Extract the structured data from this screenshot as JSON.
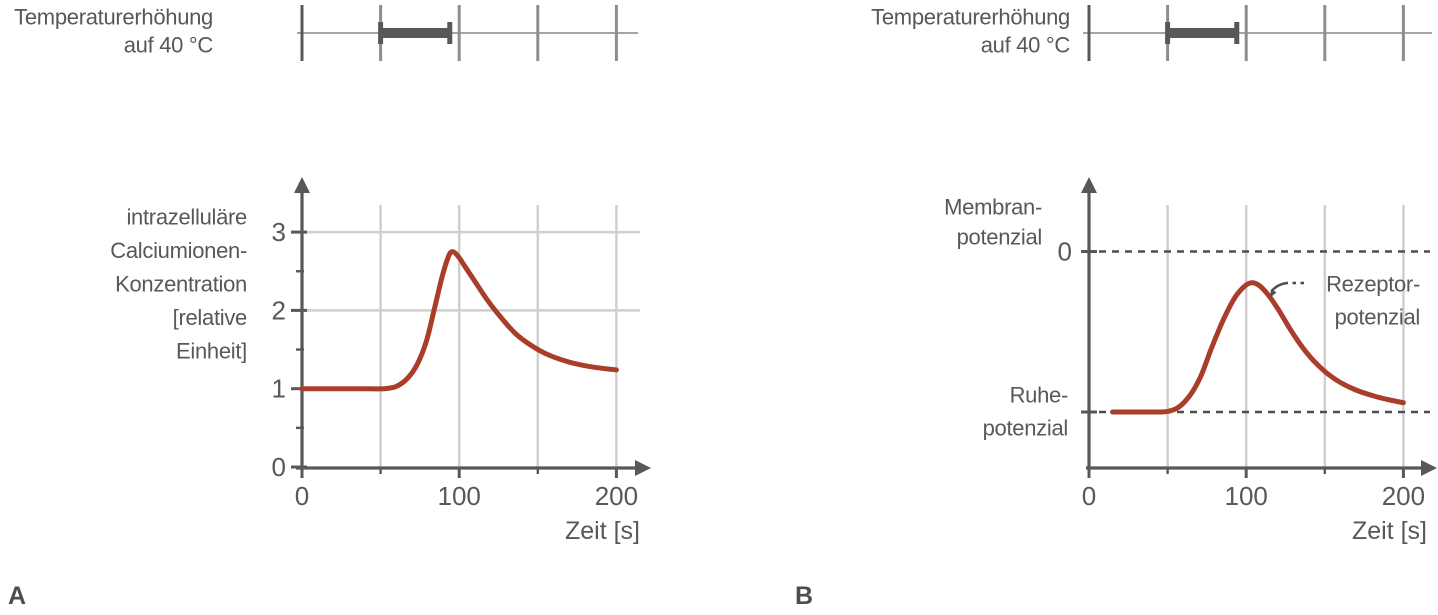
{
  "colors": {
    "curve": "#a93d29",
    "axis": "#58585a",
    "grid": "#cfcfcf",
    "text": "#58585a",
    "timeline_line": "#a4a4a6",
    "timeline_tick": "#8e8e90",
    "timeline_tick_first": "#58585a",
    "stimulus_bar": "#58585a",
    "dashed_line": "#4e4e50",
    "background": "#ffffff"
  },
  "panels": [
    {
      "letter": "A",
      "stimulus": {
        "label_line1": "Temperaturerhöhung",
        "label_line2": "auf 40 °C",
        "ticks_s": [
          0,
          50,
          100,
          150,
          200
        ],
        "bar_interval_s": [
          50,
          94
        ]
      }
    },
    {
      "letter": "B",
      "stimulus": {
        "label_line1": "Temperaturerhöhung",
        "label_line2": "auf 40 °C",
        "ticks_s": [
          0,
          50,
          100,
          150,
          200
        ],
        "bar_interval_s": [
          50,
          94
        ]
      }
    }
  ],
  "chart_data": [
    {
      "type": "line",
      "panel": "A",
      "title": "",
      "ylabel_lines": [
        "intrazelluläre",
        "Calciumionen-",
        "Konzentration",
        "[relative",
        "Einheit]"
      ],
      "xlabel": "Zeit [s]",
      "x_ticks": [
        0,
        100,
        200
      ],
      "x_minor_ticks": [
        50,
        150
      ],
      "x_gridlines": [
        50,
        100,
        150,
        200
      ],
      "y_ticks": [
        0,
        1,
        2,
        3
      ],
      "y_minor_ticks": [
        0.5,
        1.5,
        2.5
      ],
      "y_gridlines": [
        2,
        3
      ],
      "xlim": [
        0,
        218
      ],
      "ylim": [
        0,
        3.7
      ],
      "grid": true,
      "series": [
        {
          "name": "intrazelluläre Calciumionen-Konzentration [relative Einheit]",
          "color": "#a93d29",
          "points": [
            [
              0,
              1.0
            ],
            [
              40,
              1.0
            ],
            [
              52,
              1.0
            ],
            [
              60,
              1.03
            ],
            [
              67,
              1.13
            ],
            [
              73,
              1.3
            ],
            [
              79,
              1.6
            ],
            [
              84,
              2.0
            ],
            [
              89,
              2.42
            ],
            [
              93,
              2.68
            ],
            [
              95.5,
              2.75
            ],
            [
              99,
              2.7
            ],
            [
              104,
              2.55
            ],
            [
              110,
              2.37
            ],
            [
              118,
              2.13
            ],
            [
              127,
              1.9
            ],
            [
              136,
              1.7
            ],
            [
              146,
              1.55
            ],
            [
              157,
              1.43
            ],
            [
              170,
              1.34
            ],
            [
              184,
              1.28
            ],
            [
              200,
              1.24
            ]
          ]
        }
      ]
    },
    {
      "type": "line",
      "panel": "B",
      "title": "",
      "ylabel_lines": [
        "Membran-",
        "potenzial"
      ],
      "xlabel": "Zeit [s]",
      "x_ticks": [
        0,
        100,
        200
      ],
      "x_minor_ticks": [
        50,
        150
      ],
      "x_gridlines": [
        50,
        100,
        150,
        200
      ],
      "y_unit": "0 = Ruhepotenzial, 1 = 0-mV-Linie des Membranpotenzials",
      "xlim": [
        0,
        218
      ],
      "grid": true,
      "reference_lines": [
        {
          "label": "0",
          "y": 1
        },
        {
          "label_lines": [
            "Ruhe-",
            "potenzial"
          ],
          "y": 0
        }
      ],
      "annotation": {
        "label_lines": [
          "Rezeptor-",
          "potenzial"
        ],
        "points_to_t": 115.2,
        "points_to_y": 0.72
      },
      "series": [
        {
          "name": "Membranpotenzial (Rezeptorpotenzial)",
          "color": "#a93d29",
          "points": [
            [
              15,
              0
            ],
            [
              40,
              0
            ],
            [
              50,
              0.004
            ],
            [
              57,
              0.03
            ],
            [
              64,
              0.1
            ],
            [
              71,
              0.22
            ],
            [
              78,
              0.4
            ],
            [
              85,
              0.565
            ],
            [
              92,
              0.7
            ],
            [
              98,
              0.775
            ],
            [
              103,
              0.805
            ],
            [
              108,
              0.79
            ],
            [
              114,
              0.73
            ],
            [
              121,
              0.63
            ],
            [
              129,
              0.5
            ],
            [
              138,
              0.375
            ],
            [
              148,
              0.27
            ],
            [
              158,
              0.195
            ],
            [
              169,
              0.14
            ],
            [
              181,
              0.1
            ],
            [
              190,
              0.078
            ],
            [
              200,
              0.058
            ]
          ]
        }
      ]
    }
  ]
}
